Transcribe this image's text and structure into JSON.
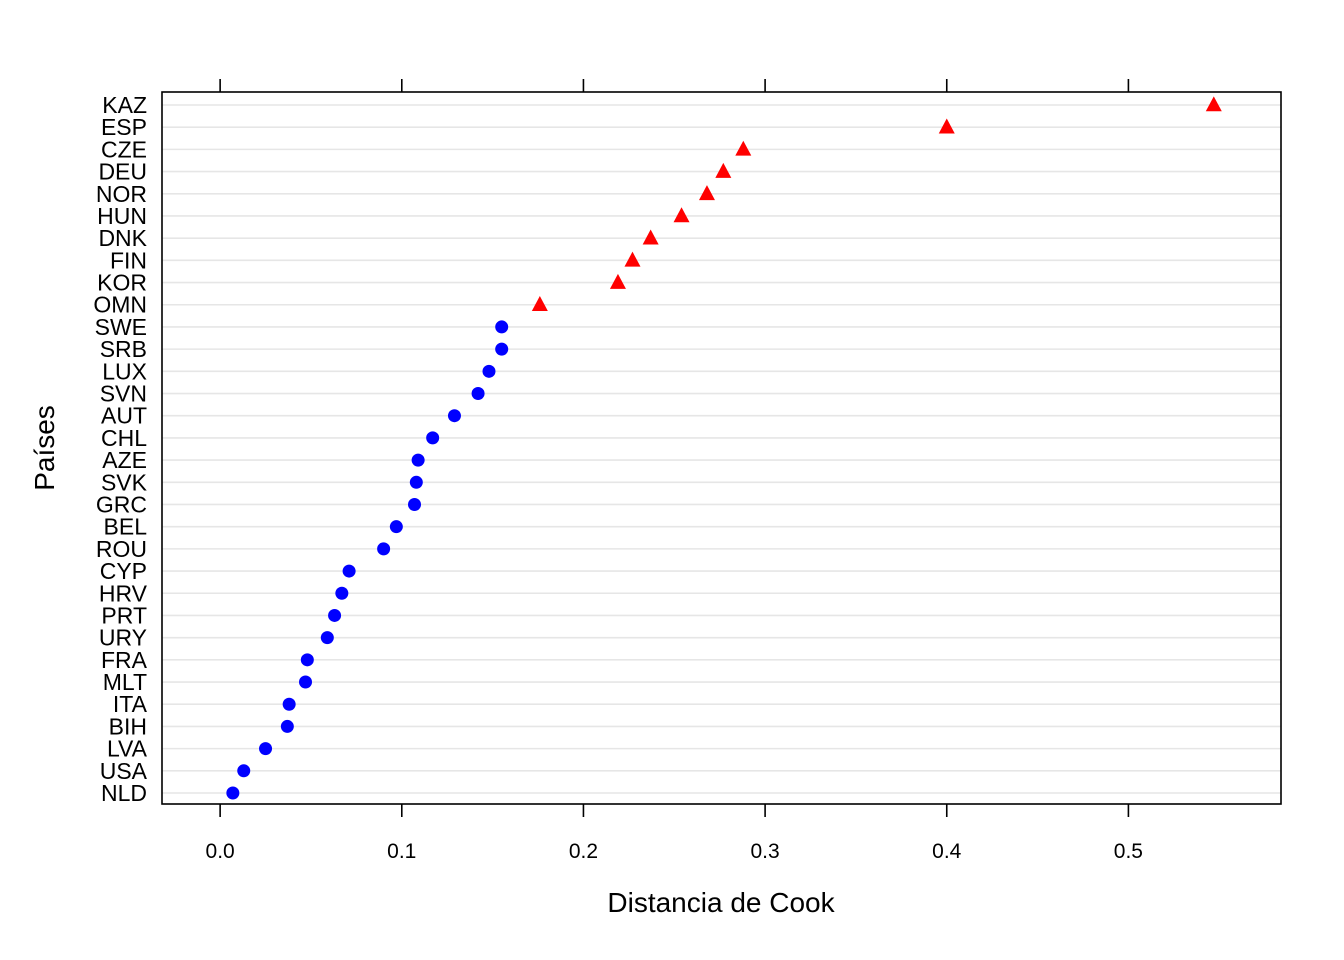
{
  "chart_data": {
    "type": "scatter",
    "title": "",
    "xlabel": "Distancia de Cook",
    "ylabel": "Países",
    "xlim": [
      -0.032,
      0.584
    ],
    "x_ticks": [
      "0.0",
      "0.1",
      "0.2",
      "0.3",
      "0.4",
      "0.5"
    ],
    "x_tick_values": [
      0.0,
      0.1,
      0.2,
      0.3,
      0.4,
      0.5
    ],
    "grid": true,
    "categories": [
      "NLD",
      "USA",
      "LVA",
      "BIH",
      "ITA",
      "MLT",
      "FRA",
      "URY",
      "PRT",
      "HRV",
      "CYP",
      "ROU",
      "BEL",
      "GRC",
      "SVK",
      "AZE",
      "CHL",
      "AUT",
      "SVN",
      "LUX",
      "SRB",
      "SWE",
      "OMN",
      "KOR",
      "FIN",
      "DNK",
      "HUN",
      "NOR",
      "DEU",
      "CZE",
      "ESP",
      "KAZ"
    ],
    "series": [
      {
        "marker": "circle",
        "color": "#0000FF",
        "points": [
          {
            "country": "NLD",
            "value": 0.007
          },
          {
            "country": "USA",
            "value": 0.013
          },
          {
            "country": "LVA",
            "value": 0.025
          },
          {
            "country": "BIH",
            "value": 0.037
          },
          {
            "country": "ITA",
            "value": 0.038
          },
          {
            "country": "MLT",
            "value": 0.047
          },
          {
            "country": "FRA",
            "value": 0.048
          },
          {
            "country": "URY",
            "value": 0.059
          },
          {
            "country": "PRT",
            "value": 0.063
          },
          {
            "country": "HRV",
            "value": 0.067
          },
          {
            "country": "CYP",
            "value": 0.071
          },
          {
            "country": "ROU",
            "value": 0.09
          },
          {
            "country": "BEL",
            "value": 0.097
          },
          {
            "country": "GRC",
            "value": 0.107
          },
          {
            "country": "SVK",
            "value": 0.108
          },
          {
            "country": "AZE",
            "value": 0.109
          },
          {
            "country": "CHL",
            "value": 0.117
          },
          {
            "country": "AUT",
            "value": 0.129
          },
          {
            "country": "SVN",
            "value": 0.142
          },
          {
            "country": "LUX",
            "value": 0.148
          },
          {
            "country": "SRB",
            "value": 0.155
          },
          {
            "country": "SWE",
            "value": 0.155
          }
        ]
      },
      {
        "marker": "triangle",
        "color": "#FF0000",
        "points": [
          {
            "country": "OMN",
            "value": 0.176
          },
          {
            "country": "KOR",
            "value": 0.219
          },
          {
            "country": "FIN",
            "value": 0.227
          },
          {
            "country": "DNK",
            "value": 0.237
          },
          {
            "country": "HUN",
            "value": 0.254
          },
          {
            "country": "NOR",
            "value": 0.268
          },
          {
            "country": "DEU",
            "value": 0.277
          },
          {
            "country": "CZE",
            "value": 0.288
          },
          {
            "country": "ESP",
            "value": 0.4
          },
          {
            "country": "KAZ",
            "value": 0.547
          }
        ]
      }
    ]
  }
}
